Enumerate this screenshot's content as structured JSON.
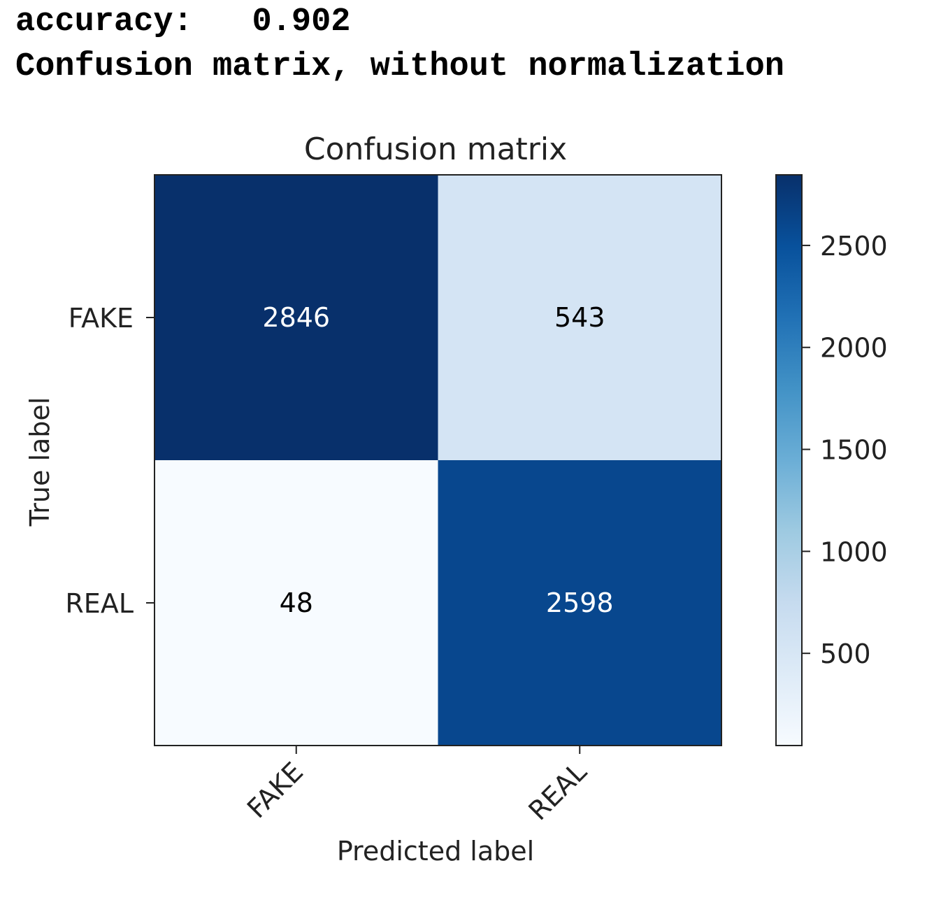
{
  "console": {
    "accuracy_line": "accuracy:   0.902",
    "subtitle_line": "Confusion matrix, without normalization"
  },
  "chart_data": {
    "type": "heatmap",
    "title": "Confusion matrix",
    "xlabel": "Predicted label",
    "ylabel": "True label",
    "x_categories": [
      "FAKE",
      "REAL"
    ],
    "y_categories": [
      "FAKE",
      "REAL"
    ],
    "values": [
      [
        2846,
        543
      ],
      [
        48,
        2598
      ]
    ],
    "colormap": "Blues",
    "colorbar": {
      "ticks": [
        500,
        1000,
        1500,
        2000,
        2500
      ],
      "range": [
        48,
        2846
      ]
    },
    "colors": {
      "low": "#f7fbff",
      "high": "#08306b",
      "text_dark": "#ffffff",
      "text_light": "#000000"
    }
  }
}
